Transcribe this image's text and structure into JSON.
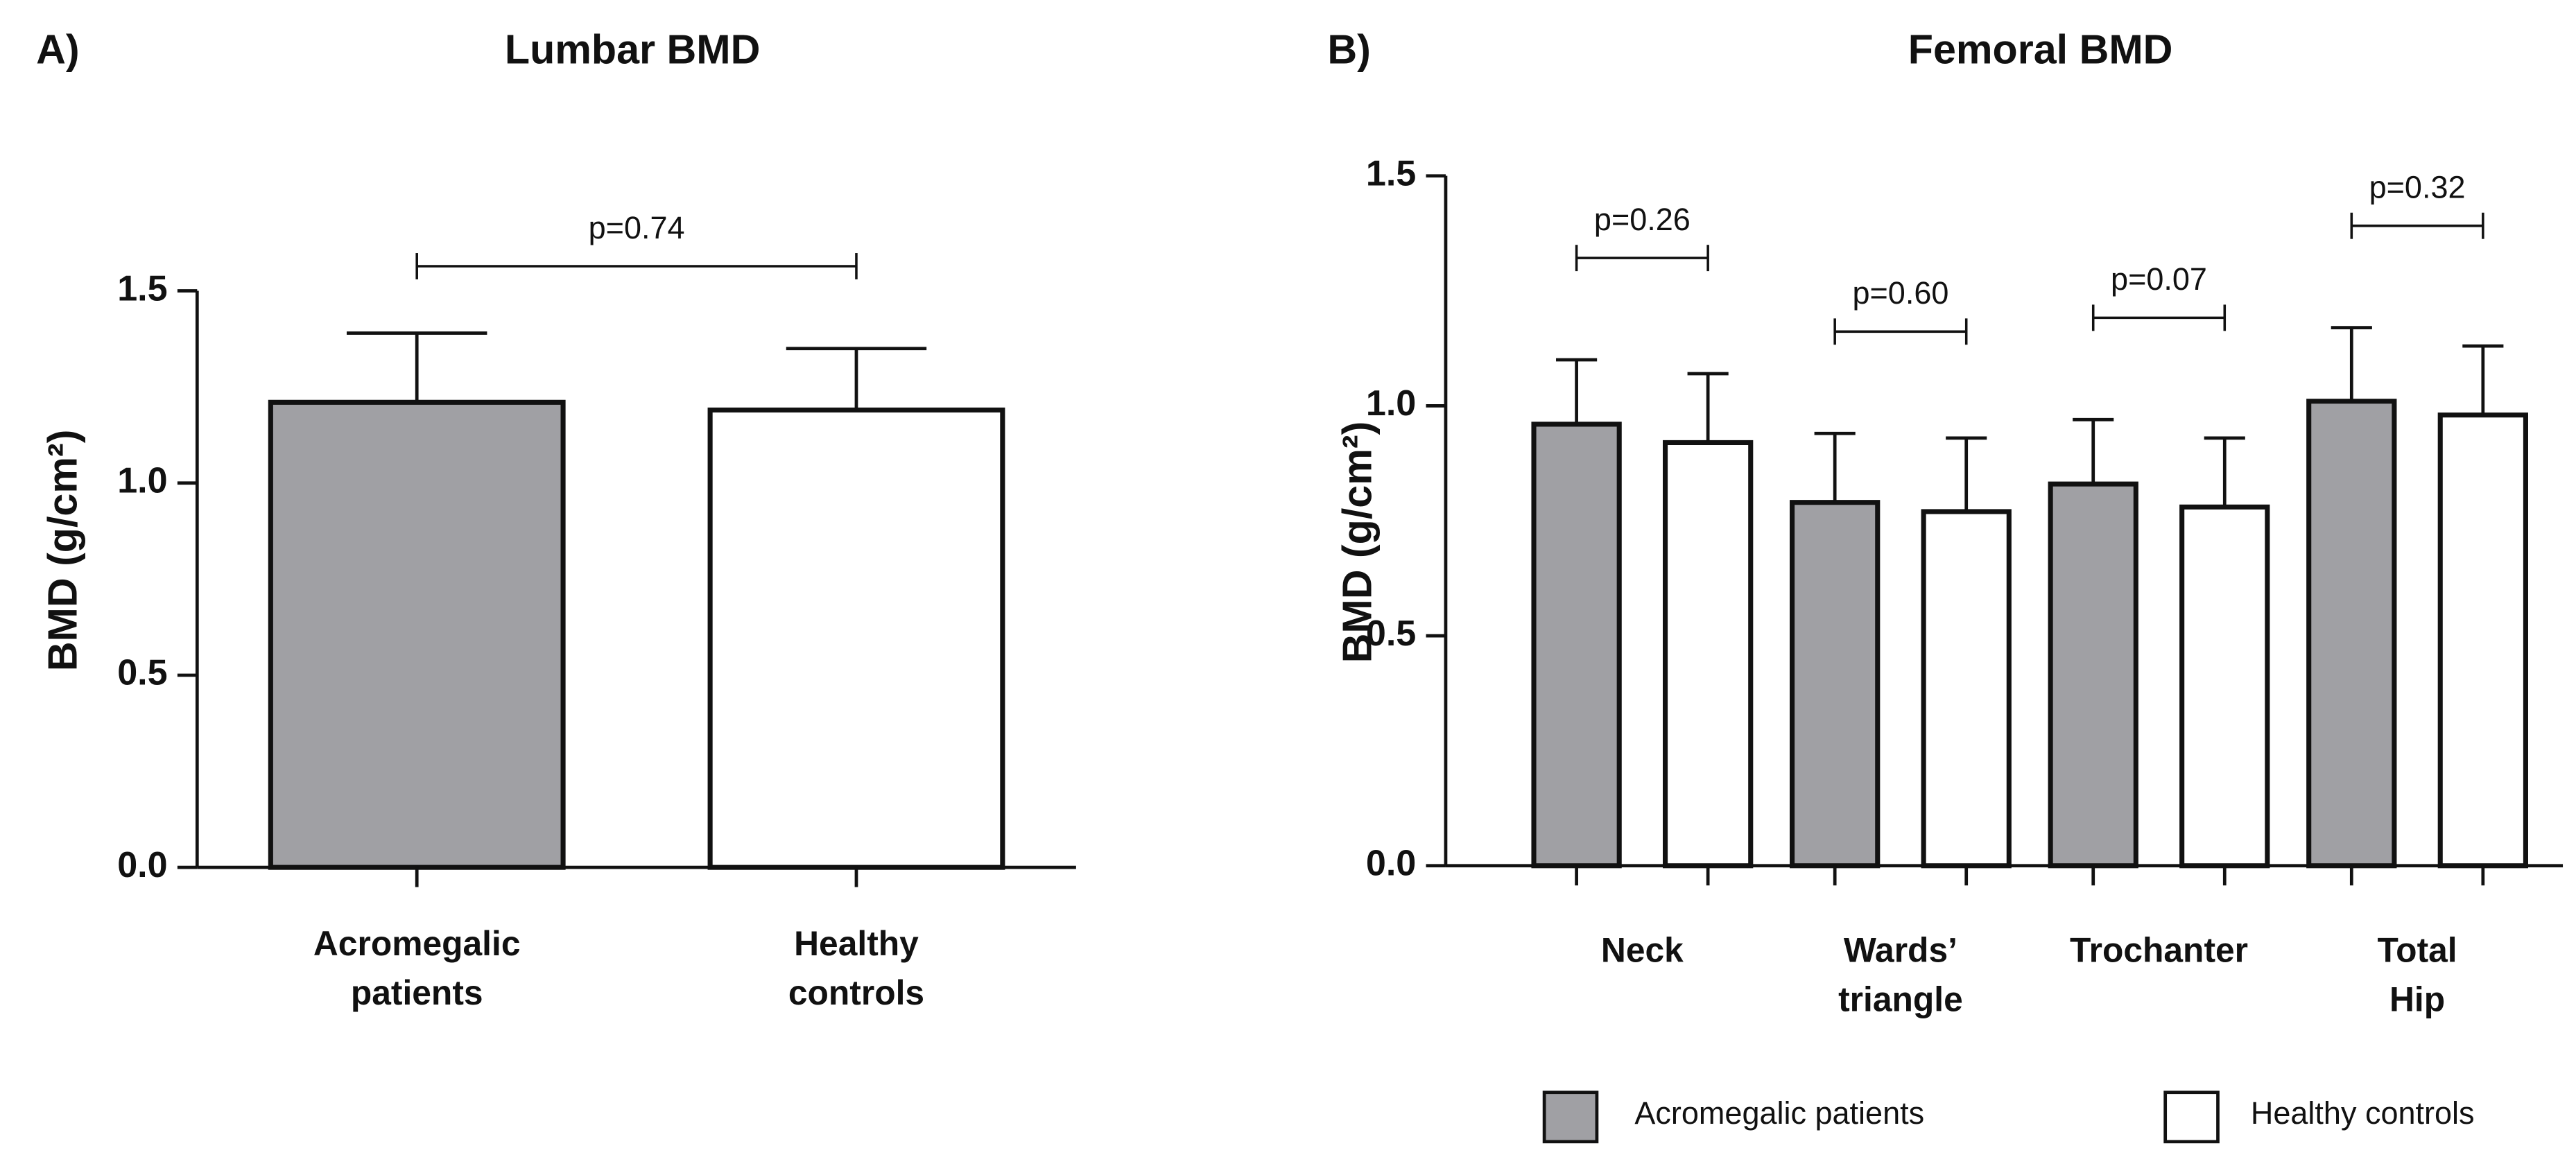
{
  "chart_data": [
    {
      "type": "bar",
      "panel": "A)",
      "title": "Lumbar BMD",
      "y_label": "BMD (g/cm²)",
      "categories": [
        [
          "Acromegalic",
          "patients"
        ],
        [
          "Healthy",
          "controls"
        ]
      ],
      "values": [
        1.21,
        1.19
      ],
      "errors": [
        0.18,
        0.16
      ],
      "colors": [
        "#a0a0a4",
        "#ffffff"
      ],
      "pvalue": "p=0.74",
      "ylim": [
        0,
        1.5
      ],
      "yticks": [
        {
          "value": 0,
          "label": "0.0"
        },
        {
          "value": 0.5,
          "label": "0.5"
        },
        {
          "value": 1,
          "label": "1.0"
        },
        {
          "value": 1.5,
          "label": "1.5"
        }
      ]
    },
    {
      "type": "grouped_bar",
      "panel": "B)",
      "title": "Femoral BMD",
      "y_label": "BMD (g/cm²)",
      "categories": [
        [
          "Neck"
        ],
        [
          "Wards’",
          "triangle"
        ],
        [
          "Trochanter"
        ],
        [
          "Total",
          "Hip"
        ]
      ],
      "series": [
        {
          "name": "Acromegalic patients",
          "color": "#a0a0a4",
          "values": [
            0.96,
            0.79,
            0.83,
            1.01
          ],
          "errors": [
            0.14,
            0.15,
            0.14,
            0.16
          ]
        },
        {
          "name": "Healthy controls",
          "color": "#ffffff",
          "values": [
            0.92,
            0.77,
            0.78,
            0.98
          ],
          "errors": [
            0.15,
            0.16,
            0.15,
            0.15
          ]
        }
      ],
      "pvalues": [
        "p=0.26",
        "p=0.60",
        "p=0.07",
        "p=0.32"
      ],
      "legend": "bottom",
      "ylim": [
        0,
        1.5
      ],
      "yticks": [
        {
          "value": 0,
          "label": "0.0"
        },
        {
          "value": 0.5,
          "label": "0.5"
        },
        {
          "value": 1,
          "label": "1.0"
        },
        {
          "value": 1.5,
          "label": "1.5"
        }
      ]
    }
  ]
}
